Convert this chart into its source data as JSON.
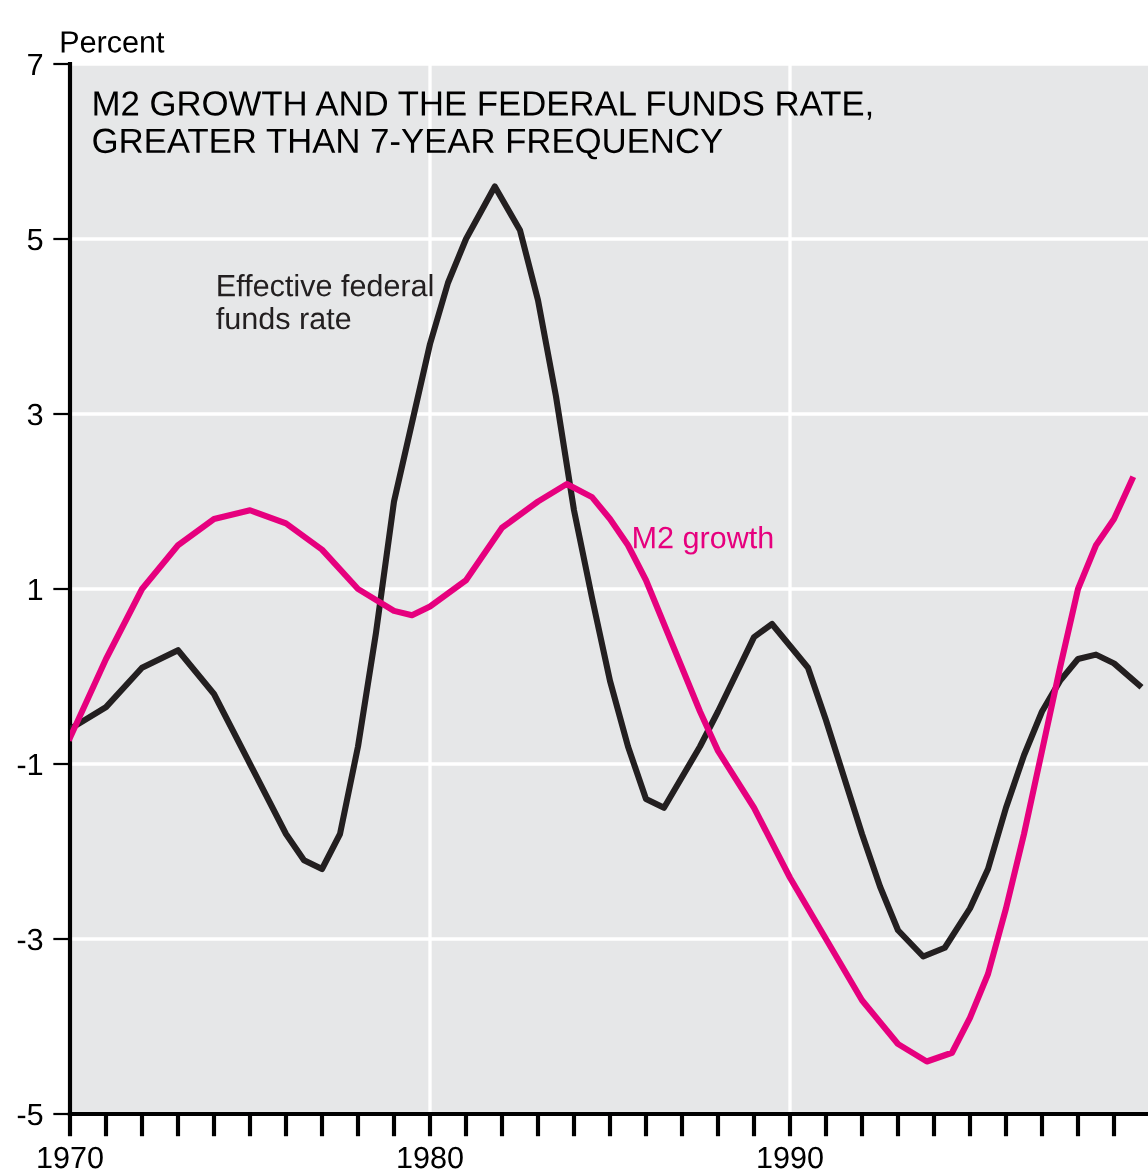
{
  "chart_data": {
    "type": "line",
    "title": "M2 GROWTH AND THE FEDERAL FUNDS RATE,\nGREATER THAN 7-YEAR FREQUENCY",
    "ylabel": "Percent",
    "xlim": [
      1970,
      2000
    ],
    "ylim": [
      -5,
      7
    ],
    "yticks": [
      -5,
      -3,
      -1,
      1,
      3,
      5,
      7
    ],
    "xticks": [
      1970,
      {
        "value": 1971,
        "label": null
      },
      {
        "value": 1972,
        "label": null
      },
      {
        "value": 1973,
        "label": null
      },
      {
        "value": 1974,
        "label": null
      },
      {
        "value": 1975,
        "label": null
      },
      {
        "value": 1976,
        "label": null
      },
      {
        "value": 1977,
        "label": null
      },
      {
        "value": 1978,
        "label": null
      },
      {
        "value": 1979,
        "label": null
      },
      1980,
      {
        "value": 1981,
        "label": null
      },
      {
        "value": 1982,
        "label": null
      },
      {
        "value": 1983,
        "label": null
      },
      {
        "value": 1984,
        "label": null
      },
      {
        "value": 1985,
        "label": null
      },
      {
        "value": 1986,
        "label": null
      },
      {
        "value": 1987,
        "label": null
      },
      {
        "value": 1988,
        "label": null
      },
      {
        "value": 1989,
        "label": null
      },
      1990,
      {
        "value": 1991,
        "label": null
      },
      {
        "value": 1992,
        "label": null
      },
      {
        "value": 1993,
        "label": null
      },
      {
        "value": 1994,
        "label": null
      },
      {
        "value": 1995,
        "label": null
      },
      {
        "value": 1996,
        "label": null
      },
      {
        "value": 1997,
        "label": null
      },
      {
        "value": 1998,
        "label": null
      },
      {
        "value": 1999,
        "label": null
      }
    ],
    "grid": true,
    "marker": "none",
    "line_style": "solid",
    "series": [
      {
        "name": "Effective federal\nfunds rate",
        "color": "#231f20",
        "x": [
          1970,
          1971,
          1972,
          1973,
          1974,
          1975,
          1976,
          1976.5,
          1977,
          1977.5,
          1978,
          1978.5,
          1979,
          1979.5,
          1980,
          1980.5,
          1981,
          1981.8,
          1982.5,
          1983,
          1983.5,
          1984,
          1984.5,
          1985,
          1985.5,
          1986,
          1986.5,
          1987.5,
          1988,
          1989,
          1989.5,
          1990.5,
          1991,
          1992,
          1992.5,
          1993,
          1993.7,
          1994.3,
          1995,
          1995.5,
          1996,
          1996.5,
          1997,
          1997.5,
          1998,
          1998.5,
          1999,
          1999.7
        ],
        "values": [
          -0.6,
          -0.35,
          0.1,
          0.3,
          -0.2,
          -1.0,
          -1.8,
          -2.1,
          -2.2,
          -1.8,
          -0.8,
          0.5,
          2.0,
          2.9,
          3.8,
          4.5,
          5.0,
          5.6,
          5.1,
          4.3,
          3.2,
          1.9,
          0.9,
          -0.05,
          -0.8,
          -1.4,
          -1.5,
          -0.8,
          -0.4,
          0.45,
          0.6,
          0.1,
          -0.5,
          -1.8,
          -2.4,
          -2.9,
          -3.2,
          -3.1,
          -2.65,
          -2.2,
          -1.5,
          -0.9,
          -0.4,
          -0.05,
          0.2,
          0.25,
          0.15,
          -0.1
        ]
      },
      {
        "name": "M2 growth",
        "color": "#e6007e",
        "x": [
          1970,
          1971,
          1972,
          1973,
          1974,
          1975,
          1976,
          1977,
          1978,
          1979,
          1979.5,
          1980,
          1981,
          1982,
          1983,
          1983.8,
          1984.5,
          1985,
          1985.5,
          1986,
          1986.5,
          1987,
          1987.5,
          1988,
          1989,
          1990,
          1991,
          1992,
          1993,
          1993.8,
          1994.5,
          1995,
          1995.5,
          1996,
          1996.5,
          1997,
          1997.5,
          1998,
          1998.5,
          1999,
          1999.5
        ],
        "values": [
          -0.7,
          0.2,
          1.0,
          1.5,
          1.8,
          1.9,
          1.75,
          1.45,
          1.0,
          0.75,
          0.7,
          0.8,
          1.1,
          1.7,
          2.0,
          2.2,
          2.05,
          1.8,
          1.5,
          1.1,
          0.6,
          0.1,
          -0.4,
          -0.85,
          -1.5,
          -2.3,
          -3.0,
          -3.7,
          -4.2,
          -4.4,
          -4.3,
          -3.9,
          -3.4,
          -2.65,
          -1.8,
          -0.85,
          0.1,
          1.0,
          1.5,
          1.8,
          2.25
        ]
      }
    ]
  }
}
